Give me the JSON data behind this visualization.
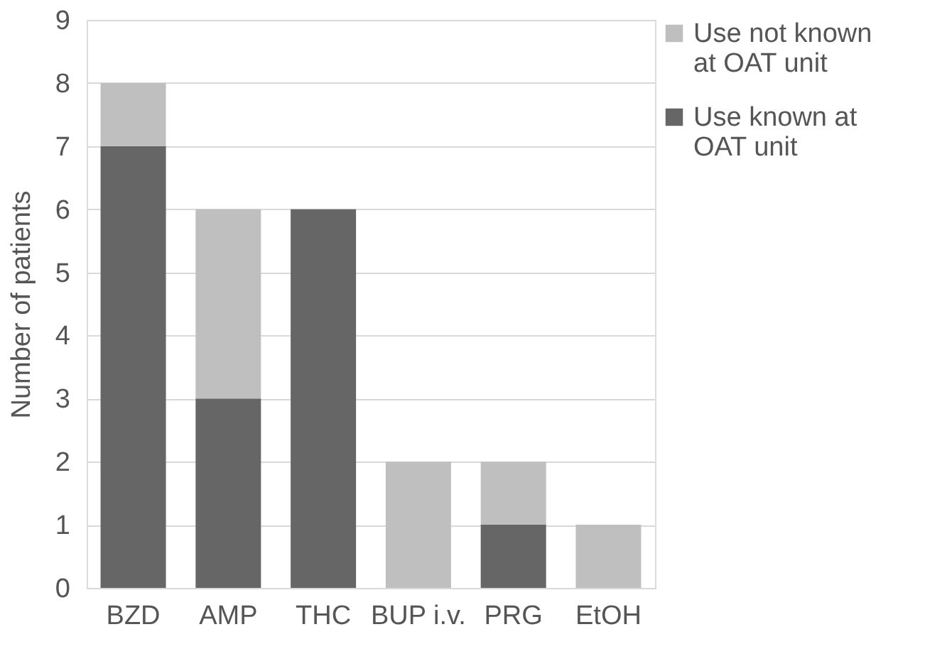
{
  "chart_data": {
    "type": "bar",
    "stacked": true,
    "ylabel": "Number of patients",
    "categories": [
      "BZD",
      "AMP",
      "THC",
      "BUP i.v.",
      "PRG",
      "EtOH"
    ],
    "series": [
      {
        "name": "Use known at OAT unit",
        "color": "#666666",
        "values": [
          7,
          3,
          6,
          0,
          1,
          0
        ]
      },
      {
        "name": "Use not known at OAT unit",
        "color": "#bfbfbf",
        "values": [
          1,
          3,
          0,
          2,
          1,
          1
        ]
      }
    ],
    "ylim": [
      0,
      9
    ],
    "yticks": [
      0,
      1,
      2,
      3,
      4,
      5,
      6,
      7,
      8,
      9
    ],
    "grid": "y",
    "legend": "top right"
  }
}
